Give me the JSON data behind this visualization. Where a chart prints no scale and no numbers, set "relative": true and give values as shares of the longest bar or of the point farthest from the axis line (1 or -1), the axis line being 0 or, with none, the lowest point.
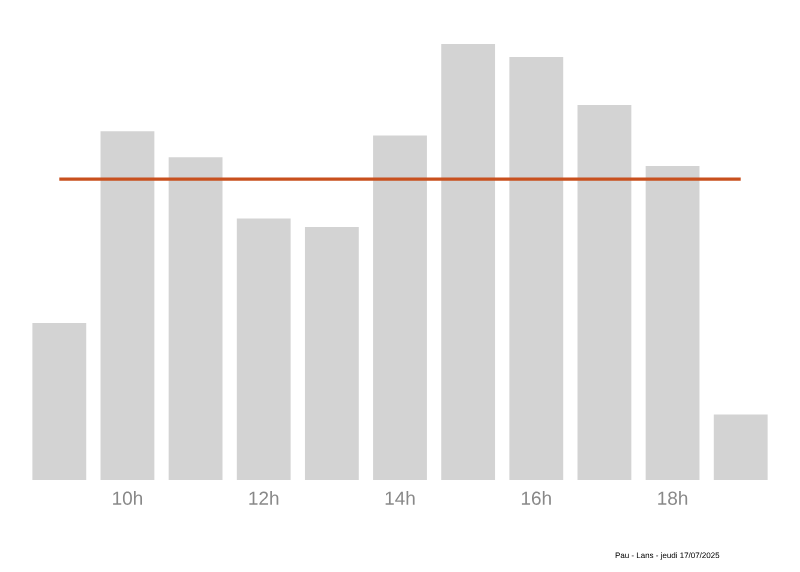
{
  "chart_data": {
    "type": "bar",
    "relative": true,
    "categories": [
      null,
      "10h",
      null,
      "12h",
      null,
      "14h",
      null,
      "16h",
      null,
      "18h",
      null
    ],
    "values": [
      0.36,
      0.8,
      0.74,
      0.6,
      0.58,
      0.79,
      1,
      0.97,
      0.86,
      0.72,
      0.15
    ],
    "color": "#d3d3d3",
    "ref_lines": [
      {
        "axis": "y",
        "value": 0.69,
        "color": "#c8501e"
      }
    ],
    "annotations": [
      "Pau - Lans - jeudi 17/07/2025"
    ]
  }
}
